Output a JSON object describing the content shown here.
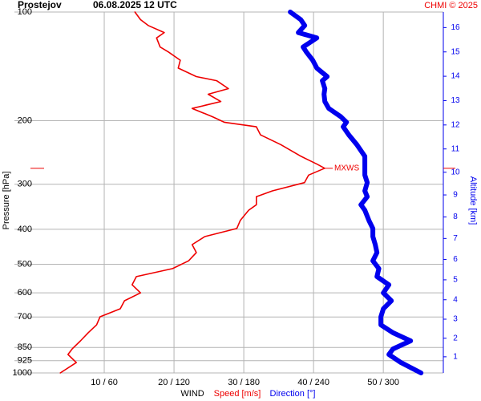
{
  "chart_data": {
    "type": "line",
    "orientation": "vertical-pressure",
    "title": "Prostejov",
    "subtitle": "06.08.2025 12 UTC",
    "credit": "CHMI © 2025",
    "ylabel": "Pressure [hPa]",
    "y2label": "Altitude [km]",
    "xlabel": "WIND",
    "pressure": [
      100,
      105,
      109,
      114,
      118,
      125,
      129,
      136,
      143,
      151,
      155,
      163,
      169,
      177,
      185,
      195,
      202,
      208,
      219,
      233,
      251,
      264,
      271,
      283,
      297,
      313,
      325,
      342,
      354,
      378,
      398,
      419,
      441,
      464,
      489,
      514,
      541,
      570,
      600,
      631,
      664,
      699,
      736,
      774,
      815,
      858,
      889,
      936,
      1000
    ],
    "series": [
      {
        "name": "Speed [m/s]",
        "color": "#ee0000",
        "axis": "x",
        "values": [
          14.4,
          15.2,
          16.3,
          18.6,
          17.5,
          18.0,
          19.2,
          20.9,
          20.6,
          23.2,
          26.1,
          27.8,
          24.9,
          26.7,
          22.6,
          25.5,
          27.2,
          31.8,
          32.4,
          35.3,
          38.2,
          40.5,
          41.6,
          39.3,
          38.7,
          34.1,
          31.8,
          31.8,
          30.7,
          29.5,
          29.0,
          24.4,
          22.6,
          23.2,
          22.1,
          19.8,
          14.6,
          14.0,
          15.2,
          12.9,
          12.3,
          9.4,
          8.9,
          7.7,
          6.6,
          5.4,
          4.8,
          6.0,
          3.7
        ]
      },
      {
        "name": "Direction [°]",
        "color": "#0000ee",
        "axis": "x2",
        "values": [
          220.0,
          229.0,
          232.4,
          226.9,
          242.8,
          231.0,
          233.8,
          239.3,
          242.8,
          251.7,
          247.6,
          249.7,
          249.0,
          249.7,
          253.1,
          263.4,
          268.3,
          265.5,
          270.3,
          277.2,
          284.1,
          284.1,
          284.1,
          284.1,
          286.2,
          284.1,
          286.2,
          280.7,
          284.1,
          287.6,
          291.0,
          291.0,
          293.1,
          294.5,
          291.0,
          296.2,
          294.5,
          304.8,
          300.0,
          306.9,
          300.0,
          297.9,
          297.9,
          308.3,
          323.5,
          308.3,
          304.8,
          315.2,
          332.4
        ]
      }
    ],
    "xlim": [
      0,
      58.6
    ],
    "x2lim": [
      0,
      351.6
    ],
    "xticks": [
      {
        "value": 10,
        "label": "10 / 60"
      },
      {
        "value": 20,
        "label": "20 / 120"
      },
      {
        "value": 30,
        "label": "30 / 180"
      },
      {
        "value": 40,
        "label": "40 / 240"
      },
      {
        "value": 50,
        "label": "50 / 300"
      }
    ],
    "ylim": [
      100,
      1000
    ],
    "ylog": true,
    "yticks": [
      100,
      200,
      300,
      400,
      500,
      600,
      700,
      850,
      925,
      1000
    ],
    "y2ticks": [
      1,
      2,
      3,
      4,
      5,
      6,
      7,
      8,
      9,
      10,
      11,
      12,
      13,
      14,
      15,
      16
    ],
    "grid": true,
    "mxws": {
      "label": "MXWS",
      "pressure": 271
    }
  }
}
